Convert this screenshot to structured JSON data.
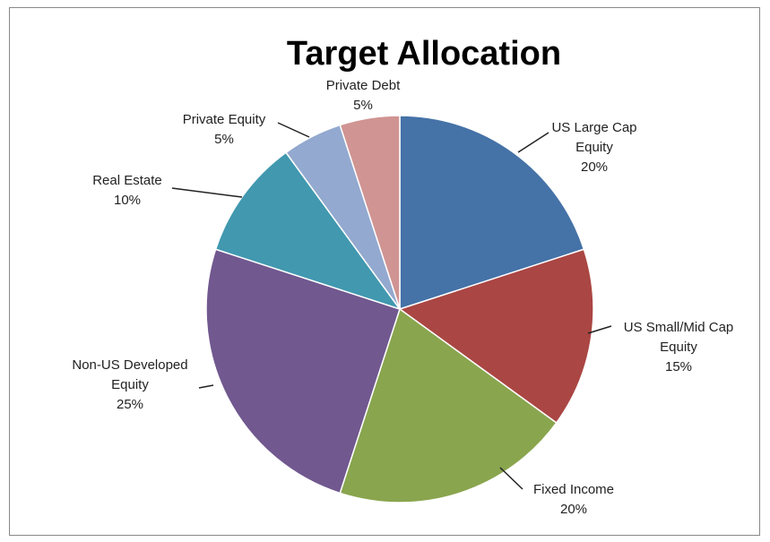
{
  "chart_data": {
    "type": "pie",
    "title": "Target Allocation",
    "categories": [
      "US Large Cap Equity",
      "US Small/Mid Cap Equity",
      "Fixed Income",
      "Non-US Developed Equity",
      "Real Estate",
      "Private Equity",
      "Private Debt"
    ],
    "values": [
      20,
      15,
      20,
      25,
      10,
      5,
      5
    ],
    "value_labels": [
      "20%",
      "15%",
      "20%",
      "25%",
      "10%",
      "5%",
      "5%"
    ],
    "colors": [
      "#4572a7",
      "#aa4643",
      "#89a54e",
      "#71588f",
      "#4198af",
      "#93a9cf",
      "#d09493"
    ]
  }
}
